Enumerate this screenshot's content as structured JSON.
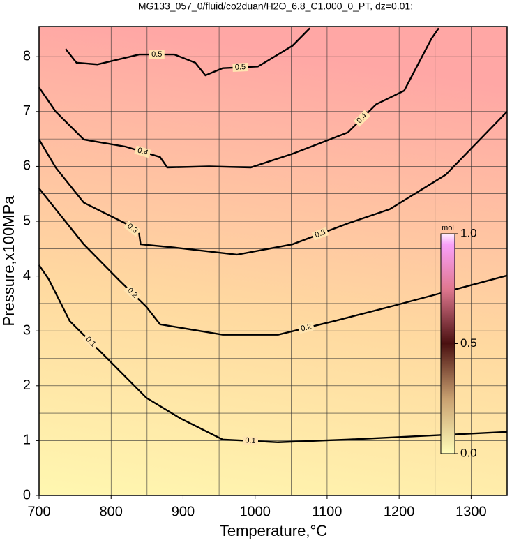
{
  "chart_data": {
    "type": "contour",
    "title": "MG133_057_0/fluid/co2duan/H2O_6.8_C1.000_0_PT, dz=0.01:",
    "x_label": "Temperature,°C",
    "y_label": "Pressure,x100MPa",
    "xlim": [
      700,
      1350
    ],
    "ylim": [
      0,
      8.55
    ],
    "xticks": [
      700,
      800,
      900,
      1000,
      1100,
      1200,
      1300
    ],
    "yticks": [
      0,
      1,
      2,
      3,
      4,
      5,
      6,
      7,
      8
    ],
    "grid": true,
    "series": [
      {
        "level": 0.1,
        "x": [
          700,
          713.5,
          742.6,
          800.6,
          849,
          897,
          955,
          1032,
          1129,
          1350
        ],
        "y": [
          4.2,
          3.94,
          3.18,
          2.42,
          1.78,
          1.4,
          1.02,
          0.97,
          1.02,
          1.16
        ]
      },
      {
        "level": 0.2,
        "x": [
          700,
          723,
          762,
          810,
          849,
          868,
          955,
          1032,
          1110,
          1187,
          1350
        ],
        "y": [
          5.6,
          5.22,
          4.58,
          3.94,
          3.44,
          3.12,
          2.93,
          2.93,
          3.18,
          3.44,
          4.01
        ]
      },
      {
        "level": 0.3,
        "x": [
          700,
          723,
          762,
          820,
          839,
          841,
          888,
          975,
          1052,
          1129,
          1187,
          1265,
          1350
        ],
        "y": [
          6.49,
          5.98,
          5.34,
          4.96,
          4.77,
          4.58,
          4.52,
          4.39,
          4.58,
          4.96,
          5.22,
          5.85,
          7.0
        ]
      },
      {
        "level": 0.4,
        "x": [
          700,
          723,
          762,
          820,
          868,
          878,
          936,
          994,
          1052,
          1129,
          1168,
          1207,
          1245,
          1255
        ],
        "y": [
          7.44,
          7.0,
          6.49,
          6.36,
          6.17,
          5.98,
          6.0,
          5.98,
          6.23,
          6.62,
          7.13,
          7.38,
          8.33,
          8.52
        ]
      },
      {
        "level": 0.5,
        "x": [
          737,
          752,
          781,
          839,
          888,
          917,
          931,
          955,
          1004,
          1052,
          1076
        ],
        "y": [
          8.14,
          7.89,
          7.86,
          8.04,
          8.04,
          7.89,
          7.66,
          7.79,
          7.82,
          8.2,
          8.52
        ]
      }
    ],
    "colorbar": {
      "label": "mol",
      "lim": [
        0,
        1
      ],
      "ticks": [
        {
          "value": 0,
          "label": "0.0"
        },
        {
          "value": 0.5,
          "label": "0.5"
        },
        {
          "value": 1,
          "label": "1.0"
        }
      ]
    }
  }
}
